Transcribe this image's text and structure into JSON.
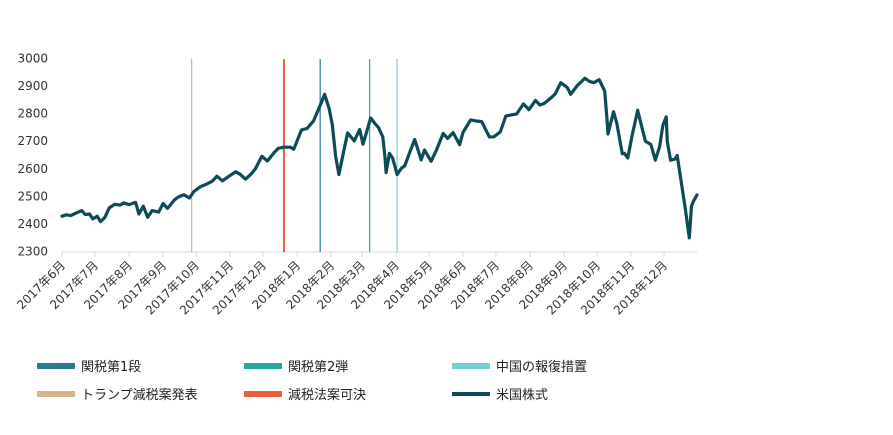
{
  "chart_data": {
    "type": "line",
    "ylim": [
      2300,
      3000
    ],
    "yticks": [
      2300,
      2400,
      2500,
      2600,
      2700,
      2800,
      2900,
      3000
    ],
    "x_range": [
      "2017-06-01",
      "2018-12-31"
    ],
    "xticks": [
      {
        "date": "2017-06-01",
        "label": "2017年6月"
      },
      {
        "date": "2017-07-01",
        "label": "2017年7月"
      },
      {
        "date": "2017-08-01",
        "label": "2017年8月"
      },
      {
        "date": "2017-09-01",
        "label": "2017年9月"
      },
      {
        "date": "2017-10-01",
        "label": "2017年10月"
      },
      {
        "date": "2017-11-01",
        "label": "2017年11月"
      },
      {
        "date": "2017-12-01",
        "label": "2017年12月"
      },
      {
        "date": "2018-01-01",
        "label": "2018年1月"
      },
      {
        "date": "2018-02-01",
        "label": "2018年2月"
      },
      {
        "date": "2018-03-01",
        "label": "2018年3月"
      },
      {
        "date": "2018-04-01",
        "label": "2018年4月"
      },
      {
        "date": "2018-05-01",
        "label": "2018年5月"
      },
      {
        "date": "2018-06-01",
        "label": "2018年6月"
      },
      {
        "date": "2018-07-01",
        "label": "2018年7月"
      },
      {
        "date": "2018-08-01",
        "label": "2018年8月"
      },
      {
        "date": "2018-09-01",
        "label": "2018年9月"
      },
      {
        "date": "2018-10-01",
        "label": "2018年10月"
      },
      {
        "date": "2018-11-01",
        "label": "2018年11月"
      },
      {
        "date": "2018-12-01",
        "label": "2018年12月"
      }
    ],
    "events": [
      {
        "name": "トランプ減税案発表",
        "date": "2017-09-27",
        "color": "#d2b48c"
      },
      {
        "name": "減税法案可決",
        "date": "2017-12-20",
        "color": "#e8603c"
      },
      {
        "name": "関税第1段",
        "date": "2018-01-22",
        "color": "#2a7b8e"
      },
      {
        "name": "関税第2弾",
        "date": "2018-03-08",
        "color": "#1fa99a"
      },
      {
        "name": "中国の報復措置",
        "date": "2018-04-02",
        "color": "#6fd3d3"
      }
    ],
    "series": [
      {
        "name": "米国株式",
        "color": "#0d4b57",
        "points": [
          [
            "2017-06-01",
            2430
          ],
          [
            "2017-06-05",
            2435
          ],
          [
            "2017-06-09",
            2432
          ],
          [
            "2017-06-13",
            2440
          ],
          [
            "2017-06-19",
            2450
          ],
          [
            "2017-06-22",
            2436
          ],
          [
            "2017-06-26",
            2438
          ],
          [
            "2017-06-29",
            2420
          ],
          [
            "2017-07-03",
            2430
          ],
          [
            "2017-07-06",
            2410
          ],
          [
            "2017-07-10",
            2425
          ],
          [
            "2017-07-14",
            2460
          ],
          [
            "2017-07-19",
            2473
          ],
          [
            "2017-07-24",
            2470
          ],
          [
            "2017-07-27",
            2478
          ],
          [
            "2017-08-01",
            2472
          ],
          [
            "2017-08-07",
            2480
          ],
          [
            "2017-08-10",
            2438
          ],
          [
            "2017-08-14",
            2466
          ],
          [
            "2017-08-18",
            2426
          ],
          [
            "2017-08-22",
            2450
          ],
          [
            "2017-08-28",
            2445
          ],
          [
            "2017-09-01",
            2476
          ],
          [
            "2017-09-05",
            2458
          ],
          [
            "2017-09-11",
            2488
          ],
          [
            "2017-09-15",
            2500
          ],
          [
            "2017-09-20",
            2508
          ],
          [
            "2017-09-25",
            2496
          ],
          [
            "2017-09-29",
            2519
          ],
          [
            "2017-10-05",
            2537
          ],
          [
            "2017-10-10",
            2545
          ],
          [
            "2017-10-16",
            2557
          ],
          [
            "2017-10-20",
            2575
          ],
          [
            "2017-10-25",
            2558
          ],
          [
            "2017-10-31",
            2575
          ],
          [
            "2017-11-06",
            2591
          ],
          [
            "2017-11-10",
            2582
          ],
          [
            "2017-11-15",
            2564
          ],
          [
            "2017-11-20",
            2582
          ],
          [
            "2017-11-24",
            2602
          ],
          [
            "2017-11-30",
            2647
          ],
          [
            "2017-12-05",
            2630
          ],
          [
            "2017-12-11",
            2660
          ],
          [
            "2017-12-15",
            2676
          ],
          [
            "2017-12-20",
            2680
          ],
          [
            "2017-12-26",
            2680
          ],
          [
            "2017-12-29",
            2673
          ],
          [
            "2018-01-05",
            2743
          ],
          [
            "2018-01-10",
            2748
          ],
          [
            "2018-01-16",
            2776
          ],
          [
            "2018-01-22",
            2832
          ],
          [
            "2018-01-26",
            2872
          ],
          [
            "2018-01-30",
            2822
          ],
          [
            "2018-02-02",
            2762
          ],
          [
            "2018-02-05",
            2648
          ],
          [
            "2018-02-08",
            2581
          ],
          [
            "2018-02-12",
            2656
          ],
          [
            "2018-02-16",
            2732
          ],
          [
            "2018-02-22",
            2703
          ],
          [
            "2018-02-27",
            2744
          ],
          [
            "2018-03-02",
            2691
          ],
          [
            "2018-03-09",
            2786
          ],
          [
            "2018-03-13",
            2765
          ],
          [
            "2018-03-16",
            2752
          ],
          [
            "2018-03-20",
            2717
          ],
          [
            "2018-03-22",
            2643
          ],
          [
            "2018-03-23",
            2588
          ],
          [
            "2018-03-26",
            2658
          ],
          [
            "2018-03-29",
            2640
          ],
          [
            "2018-04-02",
            2581
          ],
          [
            "2018-04-06",
            2604
          ],
          [
            "2018-04-09",
            2613
          ],
          [
            "2018-04-13",
            2656
          ],
          [
            "2018-04-18",
            2708
          ],
          [
            "2018-04-24",
            2634
          ],
          [
            "2018-04-27",
            2670
          ],
          [
            "2018-05-03",
            2629
          ],
          [
            "2018-05-08",
            2671
          ],
          [
            "2018-05-14",
            2730
          ],
          [
            "2018-05-18",
            2712
          ],
          [
            "2018-05-23",
            2733
          ],
          [
            "2018-05-29",
            2689
          ],
          [
            "2018-06-01",
            2734
          ],
          [
            "2018-06-08",
            2779
          ],
          [
            "2018-06-13",
            2775
          ],
          [
            "2018-06-18",
            2773
          ],
          [
            "2018-06-25",
            2717
          ],
          [
            "2018-06-29",
            2718
          ],
          [
            "2018-07-05",
            2736
          ],
          [
            "2018-07-10",
            2793
          ],
          [
            "2018-07-16",
            2798
          ],
          [
            "2018-07-20",
            2801
          ],
          [
            "2018-07-26",
            2837
          ],
          [
            "2018-07-31",
            2816
          ],
          [
            "2018-08-06",
            2850
          ],
          [
            "2018-08-10",
            2833
          ],
          [
            "2018-08-14",
            2839
          ],
          [
            "2018-08-21",
            2862
          ],
          [
            "2018-08-24",
            2874
          ],
          [
            "2018-08-29",
            2914
          ],
          [
            "2018-09-04",
            2896
          ],
          [
            "2018-09-07",
            2872
          ],
          [
            "2018-09-13",
            2904
          ],
          [
            "2018-09-20",
            2930
          ],
          [
            "2018-09-24",
            2919
          ],
          [
            "2018-09-28",
            2914
          ],
          [
            "2018-10-03",
            2925
          ],
          [
            "2018-10-08",
            2884
          ],
          [
            "2018-10-10",
            2786
          ],
          [
            "2018-10-11",
            2728
          ],
          [
            "2018-10-16",
            2809
          ],
          [
            "2018-10-19",
            2767
          ],
          [
            "2018-10-24",
            2656
          ],
          [
            "2018-10-26",
            2658
          ],
          [
            "2018-10-29",
            2641
          ],
          [
            "2018-11-02",
            2724
          ],
          [
            "2018-11-07",
            2814
          ],
          [
            "2018-11-09",
            2781
          ],
          [
            "2018-11-14",
            2702
          ],
          [
            "2018-11-19",
            2690
          ],
          [
            "2018-11-23",
            2633
          ],
          [
            "2018-11-27",
            2682
          ],
          [
            "2018-11-30",
            2760
          ],
          [
            "2018-12-03",
            2790
          ],
          [
            "2018-12-04",
            2700
          ],
          [
            "2018-12-07",
            2633
          ],
          [
            "2018-12-11",
            2637
          ],
          [
            "2018-12-13",
            2650
          ],
          [
            "2018-12-17",
            2545
          ],
          [
            "2018-12-20",
            2467
          ],
          [
            "2018-12-24",
            2351
          ],
          [
            "2018-12-26",
            2467
          ],
          [
            "2018-12-28",
            2486
          ],
          [
            "2018-12-31",
            2507
          ]
        ]
      }
    ]
  },
  "legend": [
    {
      "label": "関税第1段",
      "color": "#2a7b8e",
      "kind": "bar"
    },
    {
      "label": "関税第2弾",
      "color": "#1fa99a",
      "kind": "bar"
    },
    {
      "label": "中国の報復措置",
      "color": "#6fd3d3",
      "kind": "bar"
    },
    {
      "label": "トランプ減税案発表",
      "color": "#d2b48c",
      "kind": "bar"
    },
    {
      "label": "減税法案可決",
      "color": "#e8603c",
      "kind": "bar"
    },
    {
      "label": "米国株式",
      "color": "#0d4b57",
      "kind": "line"
    }
  ]
}
